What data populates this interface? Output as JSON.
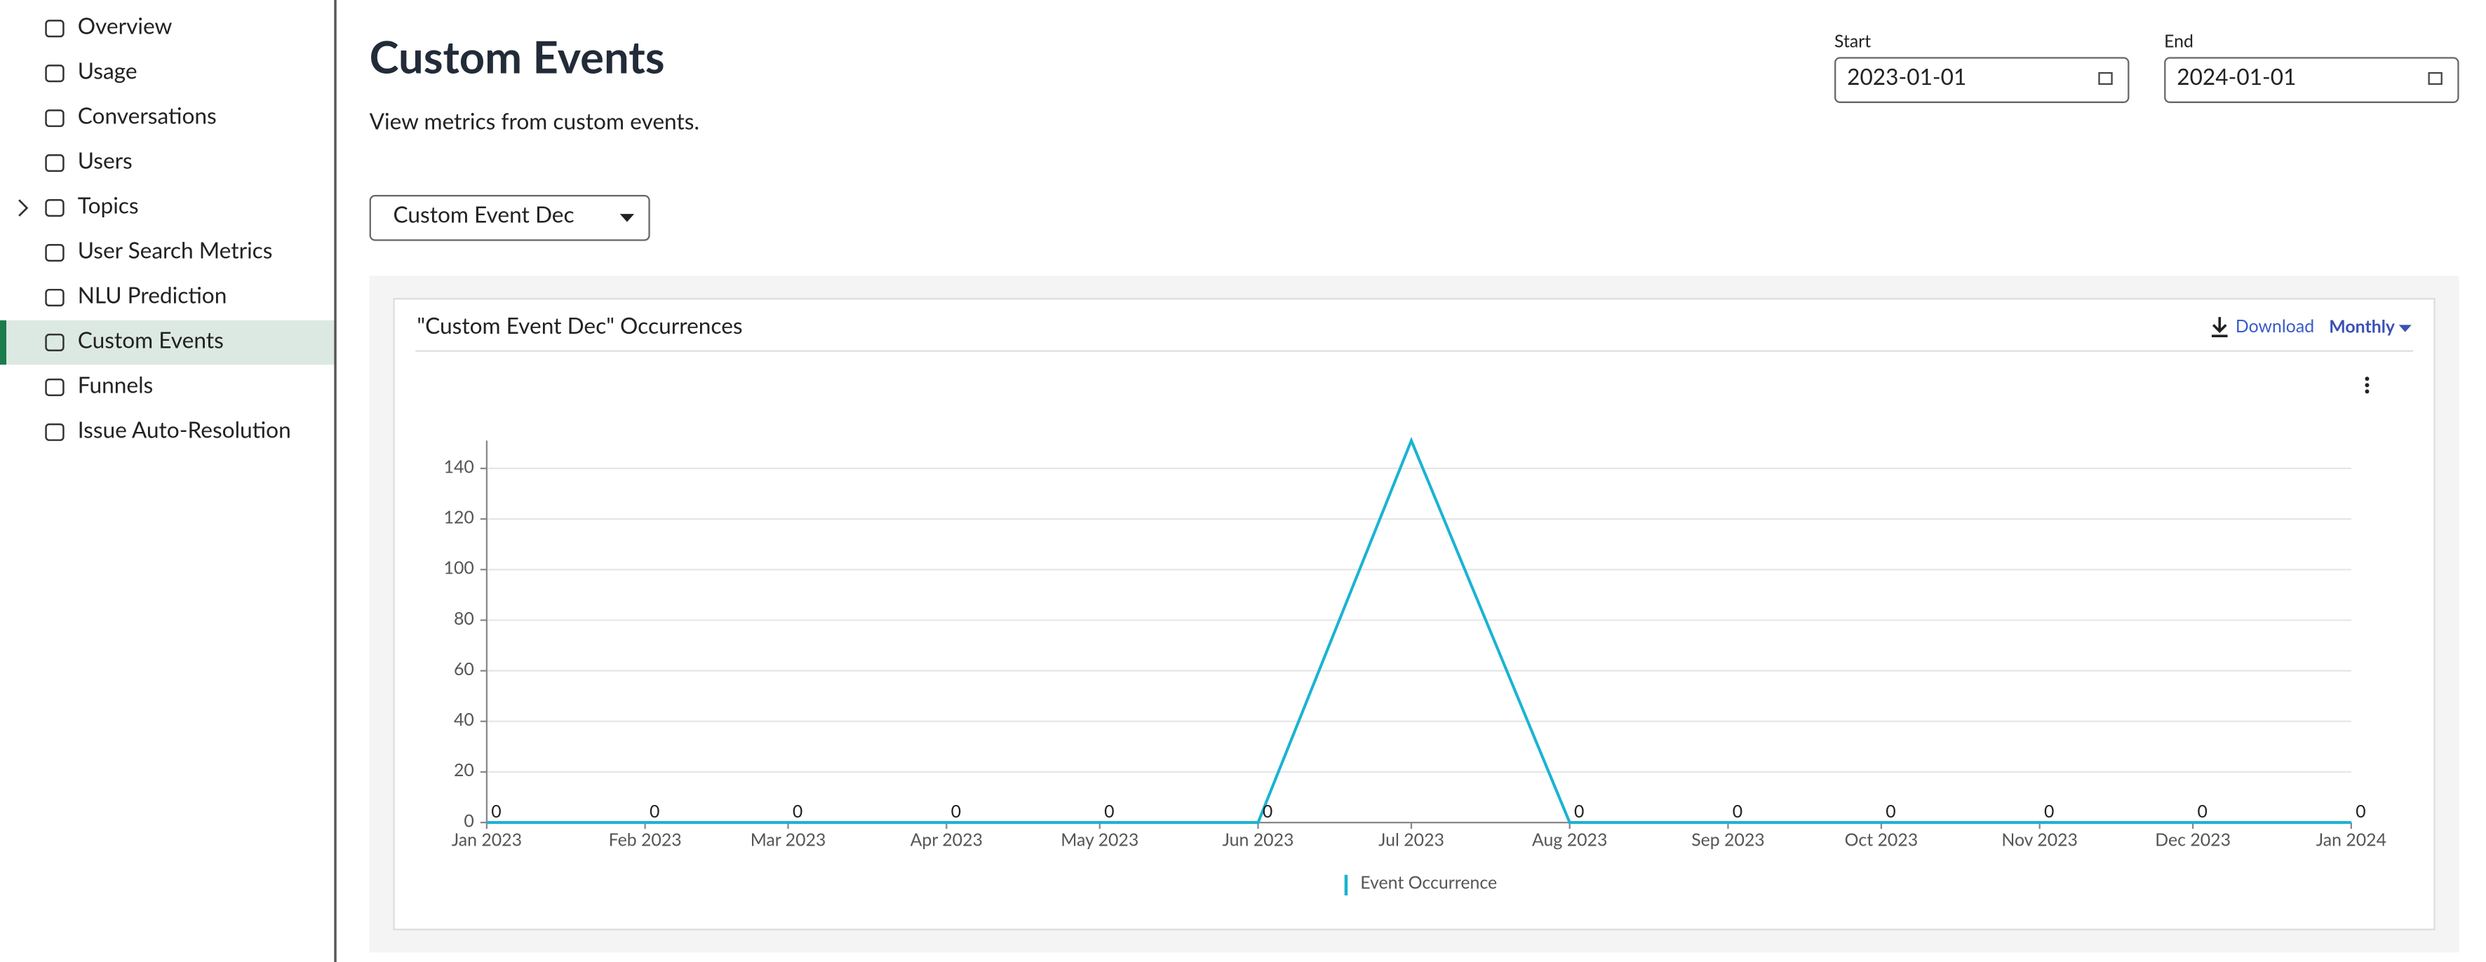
{
  "sidebar": {
    "items": [
      "Overview",
      "Usage",
      "Conversations",
      "Users",
      "Topics",
      "User Search Metrics",
      "NLU Prediction",
      "Custom Events",
      "Funnels",
      "Issue Auto-Resolution"
    ],
    "active": 7,
    "expandable": [
      4
    ]
  },
  "header": {
    "title": "Custom Events",
    "subtitle": "View metrics from custom events."
  },
  "date_range": {
    "start_label": "Start",
    "start_value": "2023-01-01",
    "end_label": "End",
    "end_value": "2024-01-01"
  },
  "event_select": "Custom Event Dec",
  "card": {
    "download": "Download",
    "period": "Monthly"
  },
  "chart_data": {
    "type": "line",
    "title": "\"Custom Event Dec\" Occurrences",
    "x": [
      "Jan 2023",
      "Feb 2023",
      "Mar 2023",
      "Apr 2023",
      "May 2023",
      "Jun 2023",
      "Jul 2023",
      "Aug 2023",
      "Sep 2023",
      "Oct 2023",
      "Nov 2023",
      "Dec 2023",
      "Jan 2024"
    ],
    "series": [
      {
        "name": "Event Occurrence",
        "color": "#1ab3d3",
        "values": [
          0,
          0,
          0,
          0,
          0,
          0,
          151,
          0,
          0,
          0,
          0,
          0,
          0
        ],
        "value_labels": [
          "0",
          "0",
          "0",
          "0",
          "0",
          "0",
          null,
          "0",
          "0",
          "0",
          "0",
          "0",
          "0"
        ]
      }
    ],
    "xlim": [
      "Jan 2023",
      "Jan 2024"
    ],
    "xticks": [
      "Jan 2023",
      "Feb 2023",
      "Mar 2023",
      "Apr 2023",
      "May 2023",
      "Jun 2023",
      "Jul 2023",
      "Aug 2023",
      "Sep 2023",
      "Oct 2023",
      "Nov 2023",
      "Dec 2023",
      "Jan 2024"
    ],
    "ylim": [
      0,
      151
    ],
    "yticks": [
      0,
      20,
      40,
      60,
      80,
      100,
      120,
      140
    ],
    "grid": true
  }
}
